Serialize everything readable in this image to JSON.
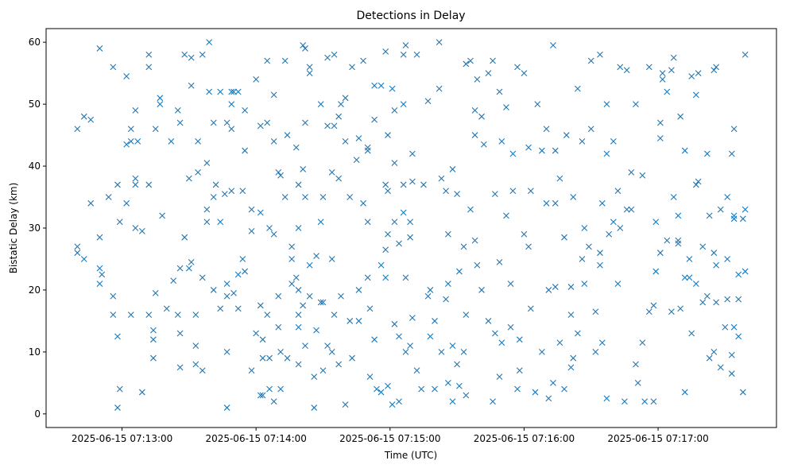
{
  "chart_data": {
    "type": "scatter",
    "title": "Detections in Delay",
    "xlabel": "Time (UTC)",
    "ylabel": "Bistatic Delay (km)",
    "x_unit": "seconds after 2025-06-15 07:12:00 UTC",
    "xlim": [
      26,
      353
    ],
    "ylim": [
      -2.2,
      62.2
    ],
    "xticks": [
      {
        "value": 60,
        "label": "2025-06-15 07:13:00"
      },
      {
        "value": 120,
        "label": "2025-06-15 07:14:00"
      },
      {
        "value": 180,
        "label": "2025-06-15 07:15:00"
      },
      {
        "value": 240,
        "label": "2025-06-15 07:16:00"
      },
      {
        "value": 300,
        "label": "2025-06-15 07:17:00"
      }
    ],
    "yticks": [
      {
        "value": 0,
        "label": "0"
      },
      {
        "value": 10,
        "label": "10"
      },
      {
        "value": 20,
        "label": "20"
      },
      {
        "value": 30,
        "label": "30"
      },
      {
        "value": 40,
        "label": "40"
      },
      {
        "value": 50,
        "label": "50"
      },
      {
        "value": 60,
        "label": "60"
      }
    ],
    "grid": false,
    "marker": "x",
    "color": "#1f77b4",
    "points": [
      [
        40,
        46
      ],
      [
        40,
        27
      ],
      [
        40,
        26
      ],
      [
        43,
        25
      ],
      [
        43,
        48
      ],
      [
        46,
        47.5
      ],
      [
        46,
        34
      ],
      [
        50,
        21
      ],
      [
        50,
        59
      ],
      [
        50,
        28.5
      ],
      [
        50,
        23.5
      ],
      [
        51,
        22.5
      ],
      [
        54,
        35
      ],
      [
        56,
        56
      ],
      [
        56,
        19
      ],
      [
        56,
        16
      ],
      [
        58,
        1
      ],
      [
        58,
        37
      ],
      [
        58,
        12.5
      ],
      [
        59,
        31
      ],
      [
        59,
        4
      ],
      [
        62,
        34
      ],
      [
        62,
        43.5
      ],
      [
        62,
        54.5
      ],
      [
        64,
        16
      ],
      [
        64,
        44
      ],
      [
        64,
        46
      ],
      [
        66,
        49
      ],
      [
        66,
        30
      ],
      [
        66,
        38
      ],
      [
        66,
        37
      ],
      [
        67,
        44
      ],
      [
        69,
        3.5
      ],
      [
        69,
        29.5
      ],
      [
        72,
        58
      ],
      [
        72,
        56
      ],
      [
        72,
        16
      ],
      [
        72,
        37
      ],
      [
        74,
        12
      ],
      [
        74,
        13.5
      ],
      [
        74,
        9
      ],
      [
        75,
        46
      ],
      [
        75,
        19.5
      ],
      [
        77,
        50
      ],
      [
        77,
        51
      ],
      [
        78,
        32
      ],
      [
        80,
        17
      ],
      [
        82,
        44
      ],
      [
        83,
        21.5
      ],
      [
        85,
        16
      ],
      [
        85,
        49
      ],
      [
        86,
        23.5
      ],
      [
        86,
        47
      ],
      [
        86,
        13
      ],
      [
        86,
        7.5
      ],
      [
        88,
        58
      ],
      [
        88,
        28.5
      ],
      [
        90,
        23.5
      ],
      [
        90,
        38
      ],
      [
        91,
        57.5
      ],
      [
        91,
        24.5
      ],
      [
        91,
        53
      ],
      [
        93,
        16
      ],
      [
        93,
        11
      ],
      [
        93,
        8
      ],
      [
        94,
        44
      ],
      [
        94,
        39
      ],
      [
        96,
        7
      ],
      [
        96,
        22
      ],
      [
        96,
        58
      ],
      [
        98,
        31
      ],
      [
        98,
        40.5
      ],
      [
        98,
        33
      ],
      [
        99,
        52
      ],
      [
        99,
        60
      ],
      [
        101,
        47
      ],
      [
        101,
        20
      ],
      [
        101,
        35
      ],
      [
        102,
        37
      ],
      [
        104,
        52
      ],
      [
        104,
        31
      ],
      [
        104,
        17
      ],
      [
        106,
        35.5
      ],
      [
        107,
        19
      ],
      [
        107,
        47
      ],
      [
        107,
        21
      ],
      [
        107,
        1
      ],
      [
        107,
        10
      ],
      [
        109,
        52
      ],
      [
        109,
        50
      ],
      [
        109,
        46
      ],
      [
        109,
        36
      ],
      [
        110,
        19.5
      ],
      [
        110,
        52
      ],
      [
        112,
        22.5
      ],
      [
        112,
        52
      ],
      [
        112,
        17
      ],
      [
        114,
        36
      ],
      [
        114,
        25
      ],
      [
        115,
        23
      ],
      [
        115,
        49
      ],
      [
        115,
        42.5
      ],
      [
        118,
        29.5
      ],
      [
        118,
        7
      ],
      [
        118,
        33
      ],
      [
        120,
        54
      ],
      [
        120,
        13
      ],
      [
        122,
        3
      ],
      [
        122,
        17.5
      ],
      [
        122,
        32.5
      ],
      [
        122,
        46.5
      ],
      [
        123,
        3
      ],
      [
        123,
        9
      ],
      [
        123,
        12
      ],
      [
        125,
        57
      ],
      [
        125,
        47
      ],
      [
        125,
        16
      ],
      [
        126,
        9
      ],
      [
        126,
        30
      ],
      [
        126,
        4
      ],
      [
        128,
        51.5
      ],
      [
        128,
        29
      ],
      [
        128,
        44
      ],
      [
        128,
        2
      ],
      [
        130,
        39
      ],
      [
        130,
        19
      ],
      [
        130,
        14
      ],
      [
        131,
        4
      ],
      [
        131,
        10
      ],
      [
        131,
        38.5
      ],
      [
        133,
        35
      ],
      [
        133,
        57
      ],
      [
        134,
        45
      ],
      [
        134,
        9
      ],
      [
        136,
        27
      ],
      [
        136,
        25
      ],
      [
        136,
        21
      ],
      [
        138,
        43
      ],
      [
        138,
        22
      ],
      [
        139,
        8
      ],
      [
        139,
        14
      ],
      [
        139,
        16
      ],
      [
        139,
        30
      ],
      [
        139,
        37
      ],
      [
        139,
        20
      ],
      [
        141,
        59.5
      ],
      [
        141,
        39.5
      ],
      [
        141,
        17.5
      ],
      [
        142,
        59
      ],
      [
        142,
        47
      ],
      [
        142,
        35
      ],
      [
        142,
        11
      ],
      [
        144,
        19
      ],
      [
        144,
        55
      ],
      [
        144,
        24
      ],
      [
        144,
        56
      ],
      [
        146,
        6
      ],
      [
        146,
        1
      ],
      [
        147,
        13.5
      ],
      [
        147,
        25.5
      ],
      [
        149,
        18
      ],
      [
        149,
        50
      ],
      [
        149,
        31
      ],
      [
        150,
        7
      ],
      [
        150,
        35
      ],
      [
        150,
        18
      ],
      [
        152,
        11
      ],
      [
        152,
        46.5
      ],
      [
        152,
        57.5
      ],
      [
        154,
        10
      ],
      [
        154,
        25
      ],
      [
        154,
        39
      ],
      [
        155,
        58
      ],
      [
        155,
        46.5
      ],
      [
        155,
        16
      ],
      [
        157,
        38
      ],
      [
        157,
        48
      ],
      [
        157,
        8
      ],
      [
        158,
        50
      ],
      [
        158,
        19
      ],
      [
        160,
        44
      ],
      [
        160,
        1.5
      ],
      [
        160,
        51
      ],
      [
        162,
        15
      ],
      [
        162,
        35
      ],
      [
        163,
        56
      ],
      [
        163,
        9
      ],
      [
        165,
        41
      ],
      [
        166,
        15
      ],
      [
        166,
        44.5
      ],
      [
        166,
        20
      ],
      [
        168,
        57
      ],
      [
        168,
        34
      ],
      [
        170,
        43
      ],
      [
        170,
        42.5
      ],
      [
        170,
        22
      ],
      [
        170,
        31
      ],
      [
        171,
        17
      ],
      [
        171,
        6
      ],
      [
        173,
        53
      ],
      [
        173,
        47.5
      ],
      [
        173,
        12
      ],
      [
        174,
        4
      ],
      [
        176,
        53
      ],
      [
        176,
        24
      ],
      [
        176,
        3.5
      ],
      [
        178,
        58.5
      ],
      [
        178,
        37
      ],
      [
        178,
        26.5
      ],
      [
        178,
        22
      ],
      [
        179,
        45
      ],
      [
        179,
        36
      ],
      [
        179,
        29
      ],
      [
        179,
        4.5
      ],
      [
        181,
        52.5
      ],
      [
        181,
        1.5
      ],
      [
        182,
        31
      ],
      [
        182,
        49
      ],
      [
        182,
        40.5
      ],
      [
        182,
        14.5
      ],
      [
        184,
        27.5
      ],
      [
        184,
        12.5
      ],
      [
        184,
        2
      ],
      [
        186,
        58
      ],
      [
        186,
        50
      ],
      [
        186,
        37
      ],
      [
        186,
        32.5
      ],
      [
        187,
        59.5
      ],
      [
        187,
        22
      ],
      [
        187,
        10
      ],
      [
        189,
        31
      ],
      [
        189,
        28.5
      ],
      [
        189,
        11
      ],
      [
        190,
        42
      ],
      [
        190,
        37.5
      ],
      [
        190,
        15.5
      ],
      [
        192,
        7
      ],
      [
        192,
        58
      ],
      [
        194,
        4
      ],
      [
        195,
        37
      ],
      [
        197,
        19
      ],
      [
        197,
        50.5
      ],
      [
        198,
        20
      ],
      [
        198,
        12.5
      ],
      [
        200,
        15
      ],
      [
        200,
        4
      ],
      [
        202,
        60
      ],
      [
        202,
        52.5
      ],
      [
        203,
        10
      ],
      [
        203,
        38
      ],
      [
        205,
        18.5
      ],
      [
        205,
        36
      ],
      [
        206,
        5
      ],
      [
        206,
        21
      ],
      [
        206,
        29
      ],
      [
        208,
        2
      ],
      [
        208,
        11
      ],
      [
        208,
        39.5
      ],
      [
        210,
        8
      ],
      [
        210,
        35.5
      ],
      [
        211,
        23
      ],
      [
        211,
        4.5
      ],
      [
        213,
        10
      ],
      [
        213,
        27
      ],
      [
        214,
        56.5
      ],
      [
        214,
        3
      ],
      [
        214,
        16
      ],
      [
        216,
        57
      ],
      [
        216,
        33
      ],
      [
        218,
        45
      ],
      [
        218,
        49
      ],
      [
        218,
        28
      ],
      [
        219,
        24
      ],
      [
        219,
        54
      ],
      [
        221,
        48
      ],
      [
        221,
        20
      ],
      [
        222,
        43.5
      ],
      [
        224,
        15
      ],
      [
        224,
        55
      ],
      [
        226,
        57
      ],
      [
        226,
        2
      ],
      [
        227,
        13
      ],
      [
        227,
        35.5
      ],
      [
        229,
        6
      ],
      [
        229,
        52
      ],
      [
        229,
        24.5
      ],
      [
        230,
        11.5
      ],
      [
        230,
        44
      ],
      [
        232,
        32
      ],
      [
        232,
        49.5
      ],
      [
        234,
        14
      ],
      [
        234,
        21
      ],
      [
        235,
        36
      ],
      [
        235,
        42
      ],
      [
        237,
        56
      ],
      [
        237,
        4
      ],
      [
        238,
        7
      ],
      [
        238,
        12
      ],
      [
        240,
        55
      ],
      [
        240,
        29
      ],
      [
        242,
        27
      ],
      [
        242,
        43
      ],
      [
        243,
        17
      ],
      [
        243,
        36
      ],
      [
        245,
        3.5
      ],
      [
        246,
        50
      ],
      [
        248,
        10
      ],
      [
        248,
        42.5
      ],
      [
        250,
        34
      ],
      [
        250,
        46
      ],
      [
        251,
        20
      ],
      [
        251,
        2.5
      ],
      [
        253,
        59.5
      ],
      [
        253,
        5
      ],
      [
        254,
        20.5
      ],
      [
        254,
        42.5
      ],
      [
        254,
        34
      ],
      [
        256,
        11.5
      ],
      [
        256,
        38
      ],
      [
        258,
        28.5
      ],
      [
        258,
        4
      ],
      [
        259,
        45
      ],
      [
        261,
        16
      ],
      [
        261,
        20.5
      ],
      [
        261,
        7.5
      ],
      [
        262,
        9
      ],
      [
        262,
        35
      ],
      [
        264,
        52.5
      ],
      [
        264,
        13
      ],
      [
        266,
        25
      ],
      [
        266,
        44
      ],
      [
        267,
        30
      ],
      [
        267,
        21
      ],
      [
        269,
        27
      ],
      [
        270,
        57
      ],
      [
        270,
        46
      ],
      [
        272,
        10
      ],
      [
        272,
        16.5
      ],
      [
        274,
        58
      ],
      [
        274,
        24
      ],
      [
        274,
        26
      ],
      [
        275,
        11.5
      ],
      [
        275,
        34
      ],
      [
        277,
        2.5
      ],
      [
        277,
        50
      ],
      [
        277,
        42
      ],
      [
        278,
        29
      ],
      [
        280,
        44
      ],
      [
        280,
        31
      ],
      [
        282,
        36
      ],
      [
        282,
        21
      ],
      [
        283,
        56
      ],
      [
        283,
        30
      ],
      [
        285,
        2
      ],
      [
        286,
        55.5
      ],
      [
        286,
        33
      ],
      [
        288,
        33
      ],
      [
        288,
        39
      ],
      [
        290,
        50
      ],
      [
        290,
        8
      ],
      [
        291,
        5
      ],
      [
        293,
        11.5
      ],
      [
        293,
        38.5
      ],
      [
        294,
        2
      ],
      [
        296,
        16.5
      ],
      [
        296,
        56
      ],
      [
        298,
        2
      ],
      [
        298,
        17.5
      ],
      [
        299,
        23
      ],
      [
        299,
        31
      ],
      [
        301,
        47
      ],
      [
        301,
        44.5
      ],
      [
        301,
        26
      ],
      [
        302,
        54
      ],
      [
        302,
        55
      ],
      [
        304,
        52
      ],
      [
        304,
        28
      ],
      [
        306,
        16.5
      ],
      [
        306,
        55.5
      ],
      [
        307,
        57.5
      ],
      [
        307,
        35
      ],
      [
        309,
        32
      ],
      [
        309,
        27.5
      ],
      [
        309,
        28
      ],
      [
        310,
        48
      ],
      [
        310,
        17
      ],
      [
        312,
        42.5
      ],
      [
        312,
        3.5
      ],
      [
        312,
        22
      ],
      [
        314,
        22
      ],
      [
        314,
        25
      ],
      [
        315,
        54.5
      ],
      [
        315,
        13
      ],
      [
        317,
        21
      ],
      [
        317,
        51.5
      ],
      [
        317,
        37
      ],
      [
        318,
        55
      ],
      [
        318,
        37.5
      ],
      [
        320,
        27
      ],
      [
        320,
        18
      ],
      [
        322,
        19
      ],
      [
        322,
        42
      ],
      [
        323,
        9
      ],
      [
        323,
        32
      ],
      [
        325,
        55.5
      ],
      [
        325,
        26
      ],
      [
        325,
        10
      ],
      [
        326,
        18
      ],
      [
        326,
        56
      ],
      [
        326,
        24
      ],
      [
        328,
        7.5
      ],
      [
        328,
        33
      ],
      [
        330,
        14
      ],
      [
        331,
        18.5
      ],
      [
        331,
        25
      ],
      [
        331,
        35
      ],
      [
        333,
        6.5
      ],
      [
        333,
        9.5
      ],
      [
        333,
        42
      ],
      [
        334,
        32
      ],
      [
        334,
        46
      ],
      [
        334,
        14
      ],
      [
        334,
        31.5
      ],
      [
        336,
        18.5
      ],
      [
        336,
        12.5
      ],
      [
        336,
        22.5
      ],
      [
        338,
        3.5
      ],
      [
        338,
        31.5
      ],
      [
        339,
        58
      ],
      [
        339,
        33
      ],
      [
        339,
        23
      ]
    ]
  }
}
